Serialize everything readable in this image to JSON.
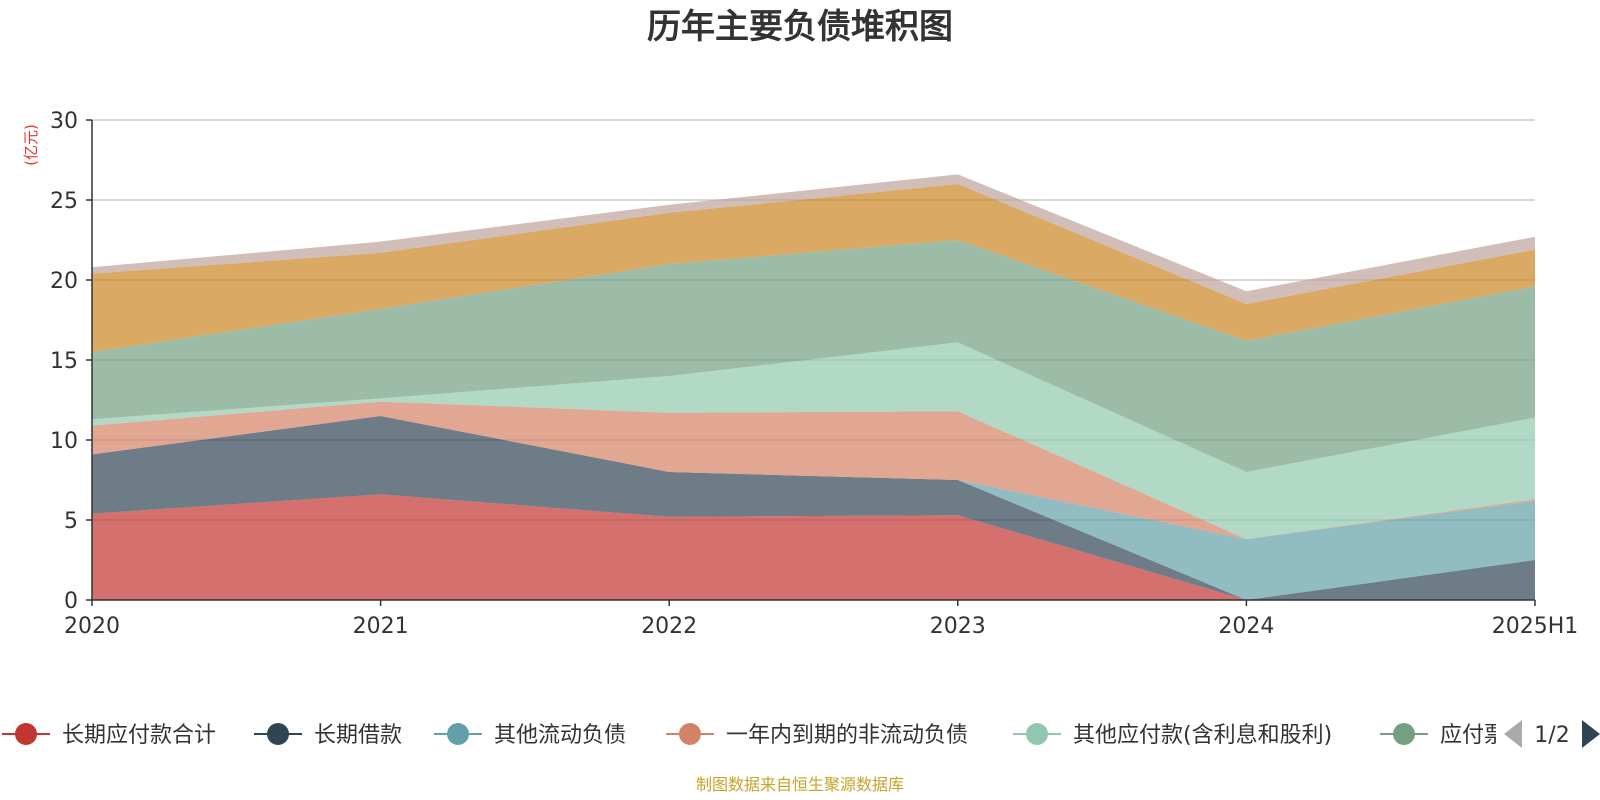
{
  "colors": {
    "grid": "#cccccc",
    "axis": "#333333",
    "unit": "#e8312f",
    "source": "#c9a227",
    "pager_inactive": "#aaaaaa",
    "pager_active": "#2f4554"
  },
  "chart_data": {
    "type": "area",
    "stacked": true,
    "title": "历年主要负债堆积图",
    "unit_label": "(亿元)",
    "categories": [
      "2020",
      "2021",
      "2022",
      "2023",
      "2024",
      "2025H1"
    ],
    "ylim": [
      0,
      30
    ],
    "yticks": [
      0,
      5,
      10,
      15,
      20,
      25,
      30
    ],
    "grid": true,
    "legend_position": "bottom",
    "series": [
      {
        "name": "长期应付款合计",
        "color": "#c23531",
        "values": [
          5.4,
          6.6,
          5.2,
          5.3,
          0,
          0
        ],
        "legend": true
      },
      {
        "name": "长期借款",
        "color": "#2f4554",
        "values": [
          3.7,
          4.9,
          2.8,
          2.2,
          0,
          2.5
        ],
        "legend": true
      },
      {
        "name": "其他流动负债",
        "color": "#61a0a8",
        "values": [
          0,
          0,
          0,
          0,
          3.8,
          3.7
        ],
        "legend": true
      },
      {
        "name": "一年内到期的非流动负债",
        "color": "#d48265",
        "values": [
          1.8,
          0.9,
          3.7,
          4.3,
          0,
          0.1
        ],
        "legend": true
      },
      {
        "name": "其他应付款(含利息和股利)",
        "color": "#91c7ae",
        "values": [
          0.4,
          0.2,
          2.3,
          4.3,
          4.2,
          5.1
        ],
        "legend": true
      },
      {
        "name": "应付票据",
        "color": "#749f83",
        "values": [
          4.2,
          5.6,
          7.0,
          6.4,
          8.2,
          8.2
        ],
        "legend": true
      },
      {
        "name": "",
        "color": "#ca8622",
        "values": [
          4.9,
          3.5,
          3.2,
          3.5,
          2.3,
          2.3
        ],
        "legend": false
      },
      {
        "name": "",
        "color": "#bda29a",
        "values": [
          0.4,
          0.7,
          0.5,
          0.6,
          0.8,
          0.8
        ],
        "legend": false
      }
    ]
  },
  "legend": {
    "truncated_last_label": "应付票",
    "page_indicator": "1/2"
  },
  "footer": {
    "source": "制图数据来自恒生聚源数据库"
  }
}
